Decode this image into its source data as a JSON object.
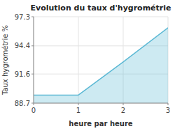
{
  "chart_data": {
    "type": "area",
    "title": "Evolution du taux d'hygrométrie",
    "x_label": "heure par heure",
    "y_label": "Taux hygrométrie %",
    "x": [
      0,
      1,
      2,
      3
    ],
    "values": [
      89.5,
      89.5,
      92.8,
      96.2
    ],
    "color": "#5bb8d4",
    "xlim": [
      0,
      3
    ],
    "xticks": [
      0,
      1,
      2,
      3
    ],
    "ylim": [
      88.7,
      97.3
    ],
    "yticks": [
      88.7,
      91.6,
      94.4,
      97.3
    ],
    "grid": true
  }
}
